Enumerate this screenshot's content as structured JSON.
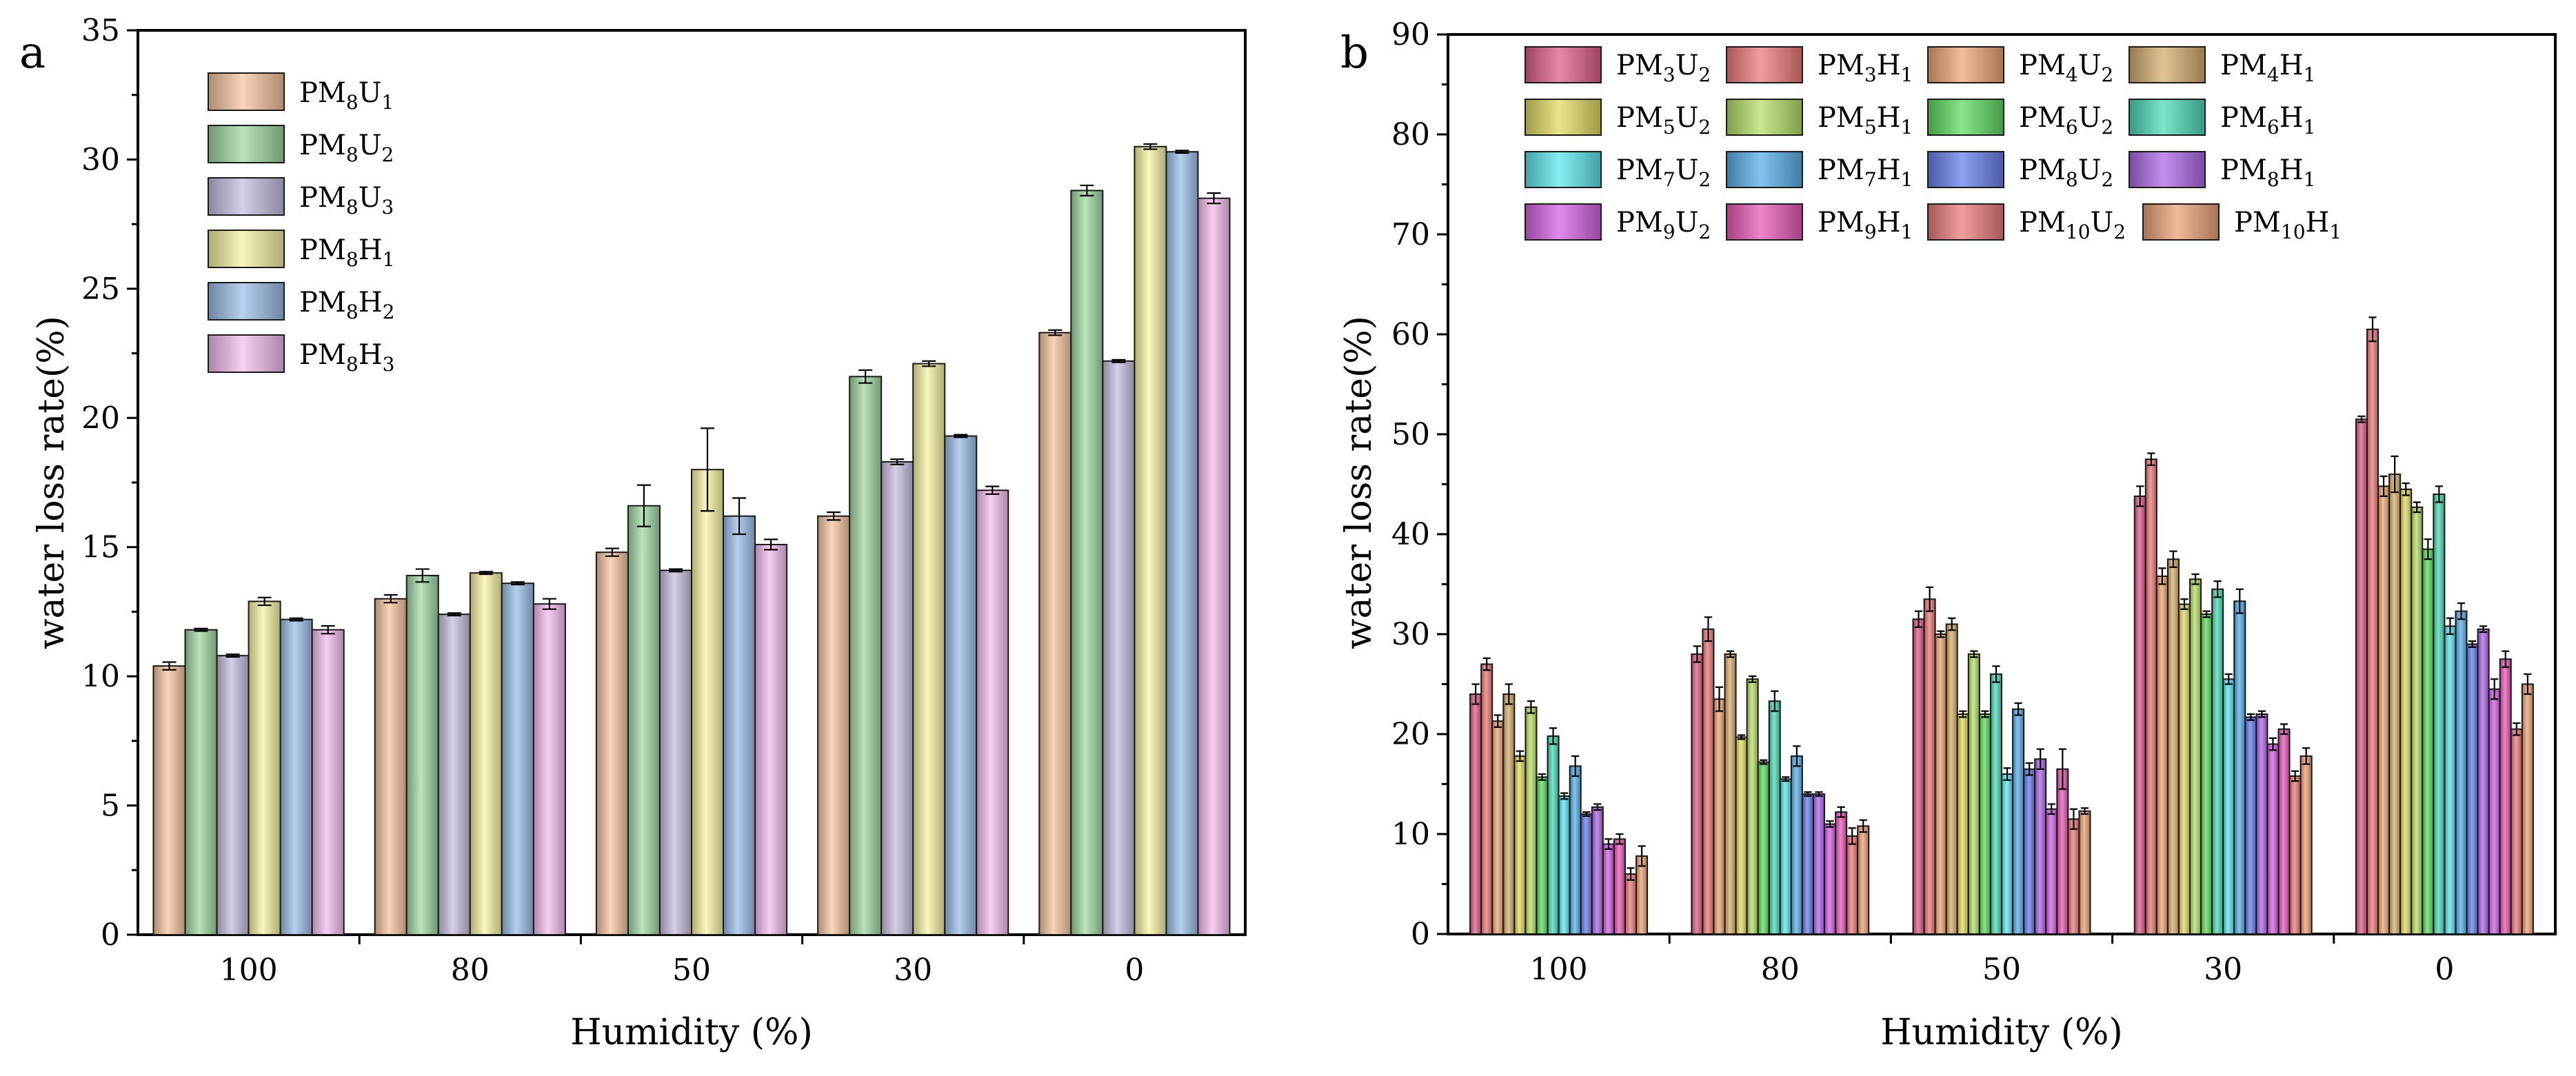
{
  "chart_data": [
    {
      "type": "bar",
      "panel_label": "a",
      "xlabel": "Humidity (%)",
      "ylabel": "water loss rate(%)",
      "ylim": [
        0,
        35
      ],
      "yticks": [
        0,
        5,
        10,
        15,
        20,
        25,
        30,
        35
      ],
      "categories": [
        "100",
        "80",
        "50",
        "30",
        "0"
      ],
      "legend_position": "top-left",
      "series": [
        {
          "name": "PM8U1",
          "label": {
            "base": "PM",
            "s1": "8",
            "mid": "U",
            "s2": "1"
          },
          "color": "#f7c6a3",
          "values": [
            10.4,
            13.0,
            14.8,
            16.2,
            23.3
          ],
          "errors": [
            0.15,
            0.15,
            0.15,
            0.15,
            0.1
          ]
        },
        {
          "name": "PM8U2",
          "label": {
            "base": "PM",
            "s1": "8",
            "mid": "U",
            "s2": "2"
          },
          "color": "#a3d9a5",
          "values": [
            11.8,
            13.9,
            16.6,
            21.6,
            28.8
          ],
          "errors": [
            0.05,
            0.25,
            0.8,
            0.25,
            0.2
          ]
        },
        {
          "name": "PM8U3",
          "label": {
            "base": "PM",
            "s1": "8",
            "mid": "U",
            "s2": "3"
          },
          "color": "#c9bfe0",
          "values": [
            10.8,
            12.4,
            14.1,
            18.3,
            22.2
          ],
          "errors": [
            0.05,
            0.05,
            0.05,
            0.1,
            0.05
          ]
        },
        {
          "name": "PM8H1",
          "label": {
            "base": "PM",
            "s1": "8",
            "mid": "H",
            "s2": "1"
          },
          "color": "#f8f4a6",
          "values": [
            12.9,
            14.0,
            18.0,
            22.1,
            30.5
          ],
          "errors": [
            0.15,
            0.05,
            1.6,
            0.1,
            0.1
          ]
        },
        {
          "name": "PM8H2",
          "label": {
            "base": "PM",
            "s1": "8",
            "mid": "H",
            "s2": "2"
          },
          "color": "#9fc0ea",
          "values": [
            12.2,
            13.6,
            16.2,
            19.3,
            30.3
          ],
          "errors": [
            0.05,
            0.05,
            0.7,
            0.05,
            0.05
          ]
        },
        {
          "name": "PM8H3",
          "label": {
            "base": "PM",
            "s1": "8",
            "mid": "H",
            "s2": "3"
          },
          "color": "#f6bff0",
          "values": [
            11.8,
            12.8,
            15.1,
            17.2,
            28.5
          ],
          "errors": [
            0.15,
            0.2,
            0.2,
            0.15,
            0.2
          ]
        }
      ]
    },
    {
      "type": "bar",
      "panel_label": "b",
      "xlabel": "Humidity (%)",
      "ylabel": "water loss rate(%)",
      "ylim": [
        0,
        90
      ],
      "yticks": [
        0,
        10,
        20,
        30,
        40,
        50,
        60,
        70,
        80,
        90
      ],
      "categories": [
        "100",
        "80",
        "50",
        "30",
        "0"
      ],
      "legend_position": "top",
      "series": [
        {
          "name": "PM3U2",
          "label": {
            "base": "PM",
            "s1": "3",
            "mid": "U",
            "s2": "2"
          },
          "color": "#e0608e",
          "values": [
            24.0,
            28.0,
            31.5,
            43.8,
            51.5
          ],
          "errors": [
            1.0,
            0.8,
            0.8,
            1.0,
            0.3
          ]
        },
        {
          "name": "PM3H1",
          "label": {
            "base": "PM",
            "s1": "3",
            "mid": "H",
            "s2": "1"
          },
          "color": "#ee7c7c",
          "values": [
            27.0,
            30.5,
            33.5,
            47.5,
            60.5
          ],
          "errors": [
            0.6,
            1.2,
            1.2,
            0.6,
            1.2
          ]
        },
        {
          "name": "PM4U2",
          "label": {
            "base": "PM",
            "s1": "4",
            "mid": "U",
            "s2": "2"
          },
          "color": "#f0a878",
          "values": [
            21.3,
            23.5,
            30.0,
            35.8,
            44.8
          ],
          "errors": [
            0.6,
            1.2,
            0.3,
            0.8,
            1.0
          ]
        },
        {
          "name": "PM4H1",
          "label": {
            "base": "PM",
            "s1": "4",
            "mid": "H",
            "s2": "1"
          },
          "color": "#d8b070",
          "values": [
            24.0,
            28.0,
            31.0,
            37.5,
            46.0
          ],
          "errors": [
            1.0,
            0.3,
            0.6,
            0.8,
            1.8
          ]
        },
        {
          "name": "PM5U2",
          "label": {
            "base": "PM",
            "s1": "5",
            "mid": "U",
            "s2": "2"
          },
          "color": "#e3dc66",
          "values": [
            17.8,
            19.7,
            22.0,
            33.0,
            44.5
          ],
          "errors": [
            0.5,
            0.2,
            0.3,
            0.5,
            0.6
          ]
        },
        {
          "name": "PM5H1",
          "label": {
            "base": "PM",
            "s1": "5",
            "mid": "H",
            "s2": "1"
          },
          "color": "#b8e06a",
          "values": [
            22.7,
            25.5,
            28.0,
            35.5,
            42.7
          ],
          "errors": [
            0.6,
            0.3,
            0.3,
            0.5,
            0.5
          ]
        },
        {
          "name": "PM6U2",
          "label": {
            "base": "PM",
            "s1": "6",
            "mid": "U",
            "s2": "2"
          },
          "color": "#62de62",
          "values": [
            15.7,
            17.2,
            22.0,
            32.0,
            38.5
          ],
          "errors": [
            0.3,
            0.2,
            0.3,
            0.3,
            1.0
          ]
        },
        {
          "name": "PM6H1",
          "label": {
            "base": "PM",
            "s1": "6",
            "mid": "H",
            "s2": "1"
          },
          "color": "#4fdcb8",
          "values": [
            19.8,
            23.3,
            26.0,
            34.5,
            44.0
          ],
          "errors": [
            0.8,
            1.0,
            0.8,
            0.8,
            0.8
          ]
        },
        {
          "name": "PM7U2",
          "label": {
            "base": "PM",
            "s1": "7",
            "mid": "U",
            "s2": "2"
          },
          "color": "#5ee8ee",
          "values": [
            13.8,
            15.5,
            16.0,
            25.5,
            30.8
          ],
          "errors": [
            0.3,
            0.2,
            0.6,
            0.5,
            0.8
          ]
        },
        {
          "name": "PM7H1",
          "label": {
            "base": "PM",
            "s1": "7",
            "mid": "H",
            "s2": "1"
          },
          "color": "#5cb0ea",
          "values": [
            16.8,
            17.8,
            22.5,
            33.3,
            32.3
          ],
          "errors": [
            1.0,
            1.0,
            0.6,
            1.2,
            0.8
          ]
        },
        {
          "name": "PM8U2",
          "label": {
            "base": "PM",
            "s1": "8",
            "mid": "U",
            "s2": "2"
          },
          "color": "#6a80ec",
          "values": [
            12.0,
            14.0,
            16.5,
            21.7,
            29.0
          ],
          "errors": [
            0.2,
            0.2,
            0.6,
            0.3,
            0.3
          ]
        },
        {
          "name": "PM8H1",
          "label": {
            "base": "PM",
            "s1": "8",
            "mid": "H",
            "s2": "1"
          },
          "color": "#b06ae8",
          "values": [
            12.7,
            14.0,
            17.5,
            22.0,
            30.5
          ],
          "errors": [
            0.3,
            0.2,
            1.0,
            0.3,
            0.3
          ]
        },
        {
          "name": "PM9U2",
          "label": {
            "base": "PM",
            "s1": "9",
            "mid": "U",
            "s2": "2"
          },
          "color": "#d664e6",
          "values": [
            9.0,
            11.0,
            12.5,
            19.0,
            24.5
          ],
          "errors": [
            0.5,
            0.3,
            0.5,
            0.6,
            1.0
          ]
        },
        {
          "name": "PM9H1",
          "label": {
            "base": "PM",
            "s1": "9",
            "mid": "H",
            "s2": "1"
          },
          "color": "#ea5cb8",
          "values": [
            9.5,
            12.2,
            16.5,
            20.5,
            27.5
          ],
          "errors": [
            0.5,
            0.5,
            2.0,
            0.5,
            0.8
          ]
        },
        {
          "name": "PM10U2",
          "label": {
            "base": "PM",
            "s1": "10",
            "mid": "U",
            "s2": "2"
          },
          "color": "#ec7e7e",
          "values": [
            6.0,
            9.8,
            11.5,
            15.8,
            20.5
          ],
          "errors": [
            0.6,
            0.8,
            1.0,
            0.5,
            0.6
          ]
        },
        {
          "name": "PM10H1",
          "label": {
            "base": "PM",
            "s1": "10",
            "mid": "H",
            "s2": "1"
          },
          "color": "#eca478",
          "values": [
            7.8,
            10.8,
            12.3,
            17.8,
            25.0
          ],
          "errors": [
            1.0,
            0.6,
            0.3,
            0.8,
            1.0
          ]
        }
      ]
    }
  ]
}
